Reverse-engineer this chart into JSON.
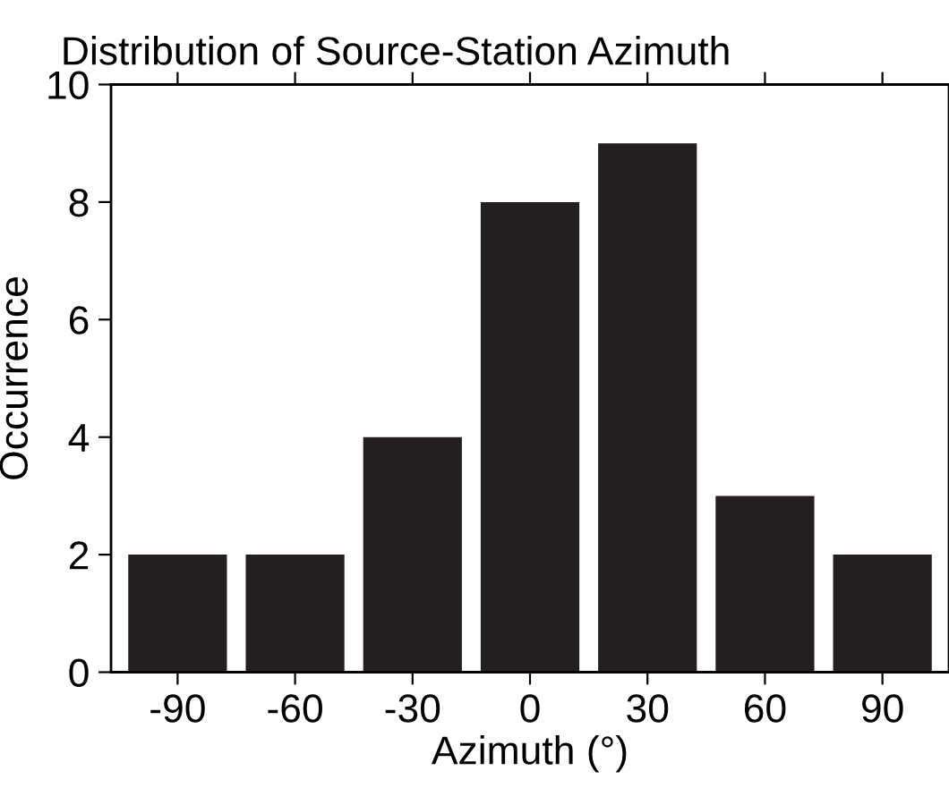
{
  "chart_data": {
    "type": "bar",
    "title": "Distribution of Source-Station Azimuth",
    "xlabel": "Azimuth (°)",
    "ylabel": "Occurrence",
    "x": [
      -90,
      -60,
      -30,
      0,
      30,
      60,
      90
    ],
    "values": [
      2,
      2,
      4,
      8,
      9,
      3,
      2
    ],
    "color": "#231f20",
    "xlim": [
      -107,
      107
    ],
    "xticks": [
      -90,
      -60,
      -30,
      0,
      30,
      60,
      90
    ],
    "ylim": [
      0,
      10
    ],
    "yticks": [
      0,
      2,
      4,
      6,
      8,
      10
    ],
    "grid": false
  }
}
